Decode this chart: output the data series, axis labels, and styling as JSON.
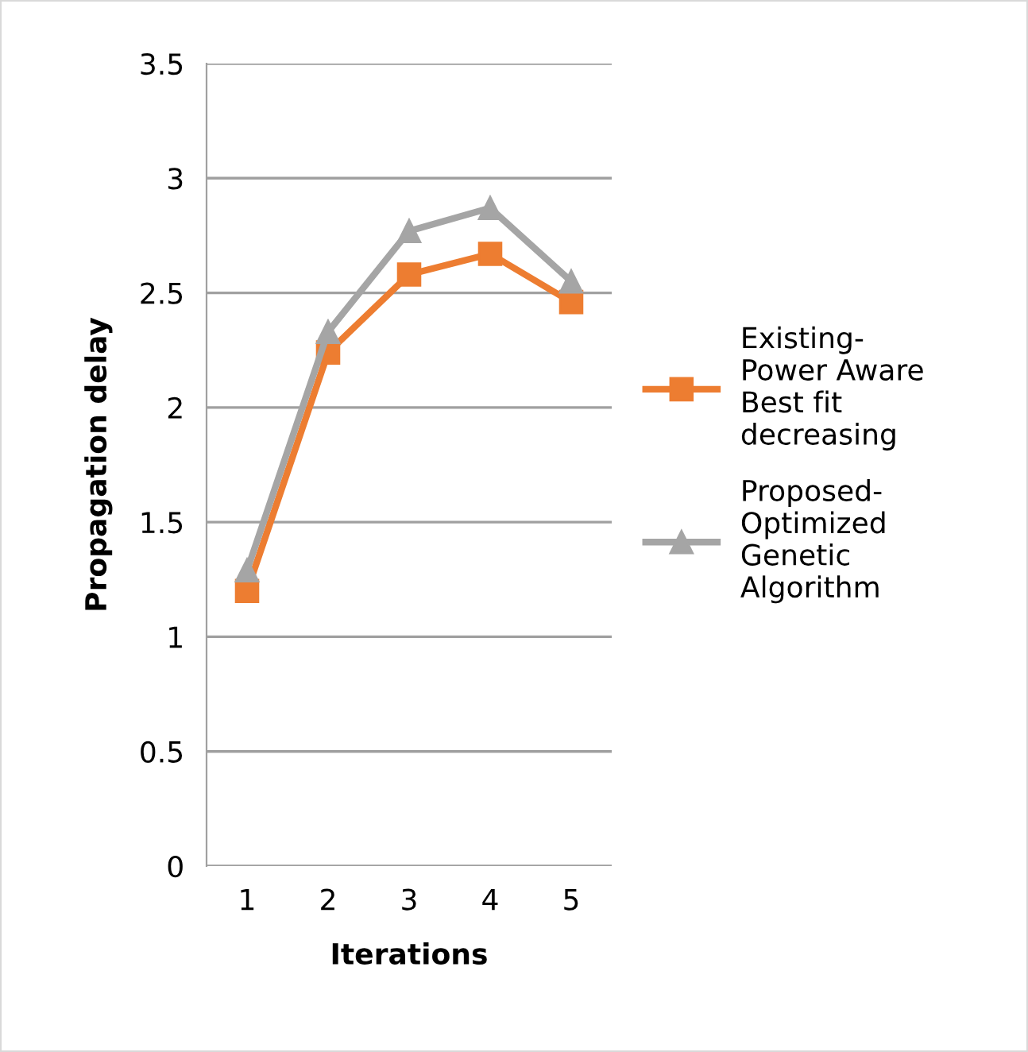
{
  "chart_data": {
    "type": "line",
    "xlabel": "Iterations",
    "ylabel": "Propagation delay",
    "categories": [
      "1",
      "2",
      "3",
      "4",
      "5"
    ],
    "series": [
      {
        "name": "Existing-\nPower Aware\nBest fit\ndecreasing",
        "color": "#ed7d31",
        "marker": "square",
        "values": [
          1.2,
          2.24,
          2.58,
          2.67,
          2.46
        ]
      },
      {
        "name": "Proposed-\nOptimized\nGenetic\nAlgorithm",
        "color": "#a5a5a5",
        "marker": "triangle",
        "values": [
          1.29,
          2.33,
          2.77,
          2.87,
          2.55
        ]
      }
    ],
    "ylim": [
      0,
      3.5
    ],
    "yticks": [
      0,
      0.5,
      1,
      1.5,
      2,
      2.5,
      3,
      3.5
    ],
    "grid": "y",
    "legend": "right",
    "line_style": "solid"
  }
}
